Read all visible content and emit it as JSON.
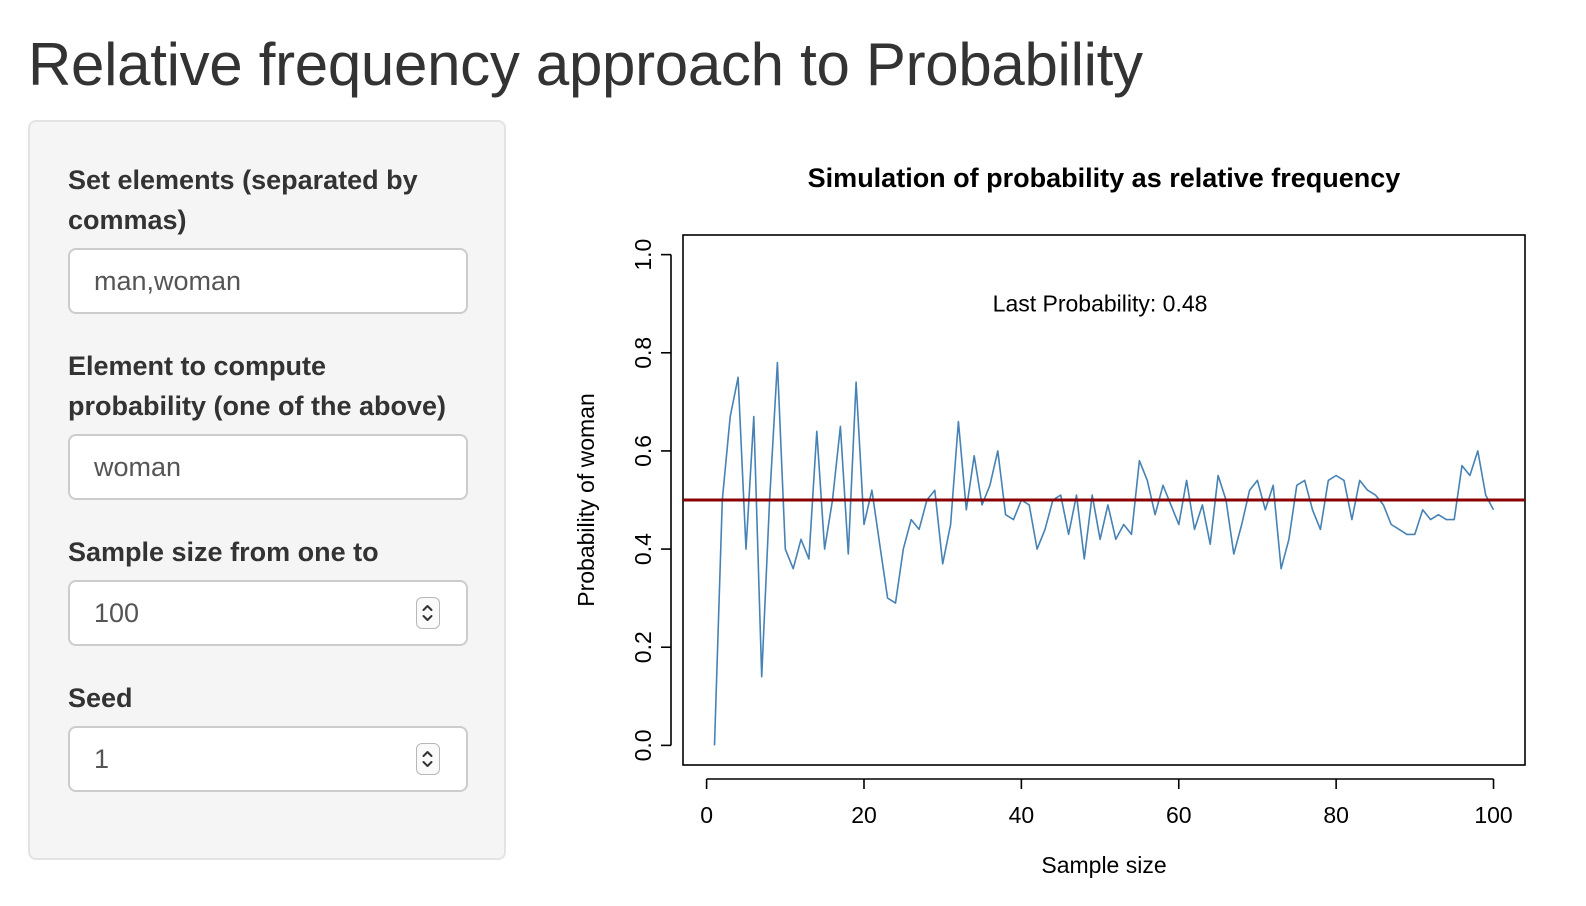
{
  "page": {
    "title": "Relative frequency approach to Probability"
  },
  "sidebar": {
    "fields": [
      {
        "label": "Set elements (separated by commas)",
        "value": "man,woman",
        "type": "text"
      },
      {
        "label": "Element to compute probability (one of the above)",
        "value": "woman",
        "type": "text"
      },
      {
        "label": "Sample size from one to",
        "value": "100",
        "type": "number",
        "icon": "spinner-icon"
      },
      {
        "label": "Seed",
        "value": "1",
        "type": "number",
        "icon": "spinner-icon"
      }
    ]
  },
  "chart_data": {
    "type": "line",
    "title": "Simulation of probability as relative frequency",
    "xlabel": "Sample size",
    "ylabel": "Probability of woman",
    "xlim": [
      -3,
      104
    ],
    "ylim": [
      -0.04,
      1.04
    ],
    "xticks": [
      0,
      20,
      40,
      60,
      80,
      100
    ],
    "yticks": [
      0.0,
      0.2,
      0.4,
      0.6,
      0.8,
      1.0
    ],
    "ytick_labels": [
      "0.0",
      "0.2",
      "0.4",
      "0.6",
      "0.8",
      "1.0"
    ],
    "grid": false,
    "annotation": {
      "text": "Last Probability: 0.48",
      "x": 50,
      "y": 0.9
    },
    "reference_line": {
      "y": 0.5,
      "color": "#8b0000"
    },
    "series": [
      {
        "color": "#4682b4",
        "x": [
          1,
          2,
          3,
          4,
          5,
          6,
          7,
          8,
          9,
          10,
          11,
          12,
          13,
          14,
          15,
          16,
          17,
          18,
          19,
          20,
          21,
          22,
          23,
          24,
          25,
          26,
          27,
          28,
          29,
          30,
          31,
          32,
          33,
          34,
          35,
          36,
          37,
          38,
          39,
          40,
          41,
          42,
          43,
          44,
          45,
          46,
          47,
          48,
          49,
          50,
          51,
          52,
          53,
          54,
          55,
          56,
          57,
          58,
          59,
          60,
          61,
          62,
          63,
          64,
          65,
          66,
          67,
          68,
          69,
          70,
          71,
          72,
          73,
          74,
          75,
          76,
          77,
          78,
          79,
          80,
          81,
          82,
          83,
          84,
          85,
          86,
          87,
          88,
          89,
          90,
          91,
          92,
          93,
          94,
          95,
          96,
          97,
          98,
          99,
          100
        ],
        "y": [
          0.0,
          0.5,
          0.67,
          0.75,
          0.4,
          0.67,
          0.14,
          0.5,
          0.78,
          0.4,
          0.36,
          0.42,
          0.38,
          0.64,
          0.4,
          0.5,
          0.65,
          0.39,
          0.74,
          0.45,
          0.52,
          0.41,
          0.3,
          0.29,
          0.4,
          0.46,
          0.44,
          0.5,
          0.52,
          0.37,
          0.45,
          0.66,
          0.48,
          0.59,
          0.49,
          0.53,
          0.6,
          0.47,
          0.46,
          0.5,
          0.49,
          0.4,
          0.44,
          0.5,
          0.51,
          0.43,
          0.51,
          0.38,
          0.51,
          0.42,
          0.49,
          0.42,
          0.45,
          0.43,
          0.58,
          0.54,
          0.47,
          0.53,
          0.49,
          0.45,
          0.54,
          0.44,
          0.49,
          0.41,
          0.55,
          0.5,
          0.39,
          0.45,
          0.52,
          0.54,
          0.48,
          0.53,
          0.36,
          0.42,
          0.53,
          0.54,
          0.48,
          0.44,
          0.54,
          0.55,
          0.54,
          0.46,
          0.54,
          0.52,
          0.51,
          0.49,
          0.45,
          0.44,
          0.43,
          0.43,
          0.48,
          0.46,
          0.47,
          0.46,
          0.46,
          0.57,
          0.55,
          0.6,
          0.51,
          0.48
        ]
      }
    ]
  }
}
